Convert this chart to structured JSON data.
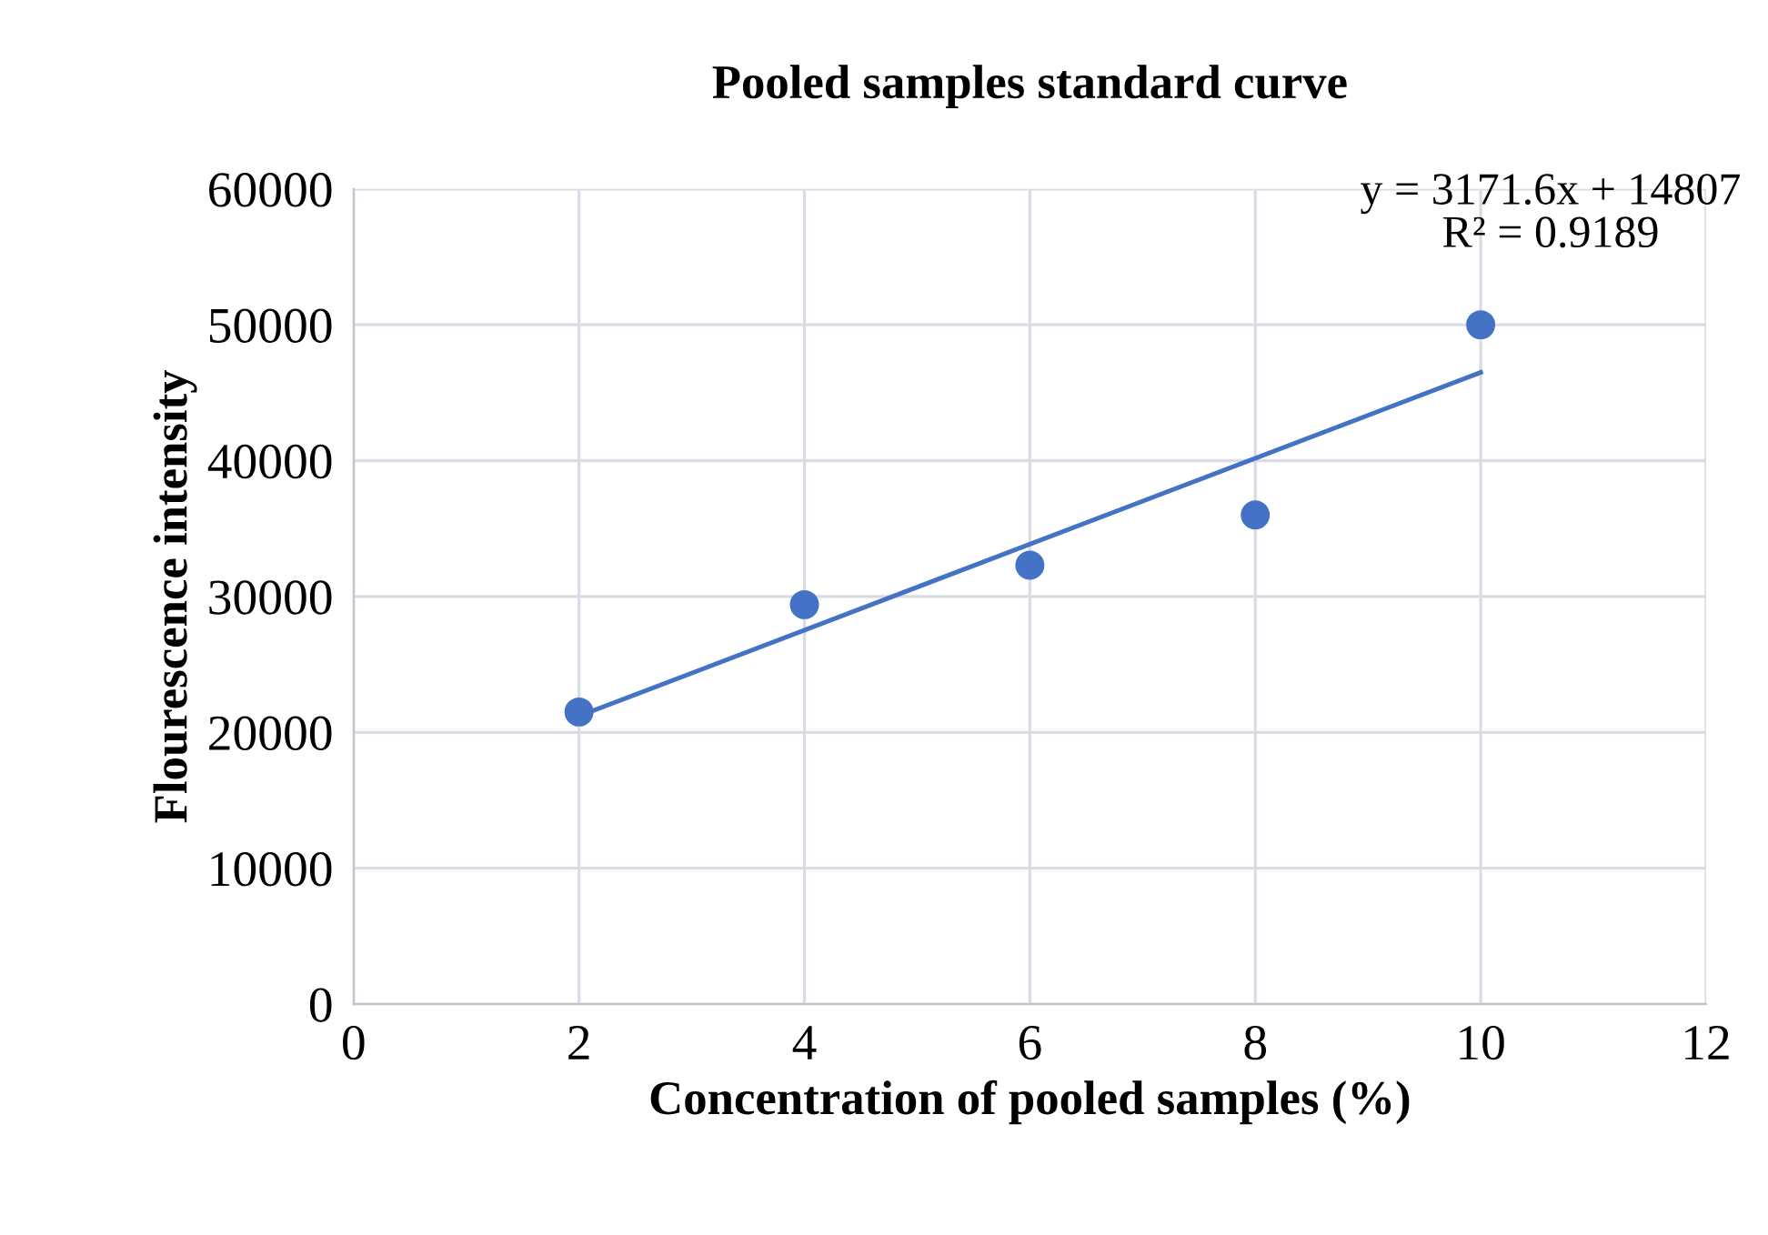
{
  "chart_data": {
    "type": "scatter",
    "title": "Pooled samples standard curve",
    "xlabel": "Concentration of pooled samples (%)",
    "ylabel": "Flourescence intensity",
    "series": [
      {
        "color": "#4472c4",
        "x": [
          2,
          4,
          6,
          8,
          10
        ],
        "values": [
          21500,
          29400,
          32300,
          36000,
          50000
        ]
      },
      {
        "type": "line",
        "marker": "none",
        "color": "#4472c4",
        "x": [
          2,
          10
        ],
        "values": [
          21200,
          46500
        ]
      }
    ],
    "annotations": [
      "y = 3171.6x + 14807\nR² = 0.9189"
    ],
    "xlim": [
      0,
      12
    ],
    "xticks": [
      0,
      2,
      4,
      6,
      8,
      10,
      12
    ],
    "ylim": [
      0,
      60000
    ],
    "yticks": [
      0,
      10000,
      20000,
      30000,
      40000,
      50000,
      60000
    ],
    "grid": true,
    "marker": "circle",
    "legend": false
  }
}
